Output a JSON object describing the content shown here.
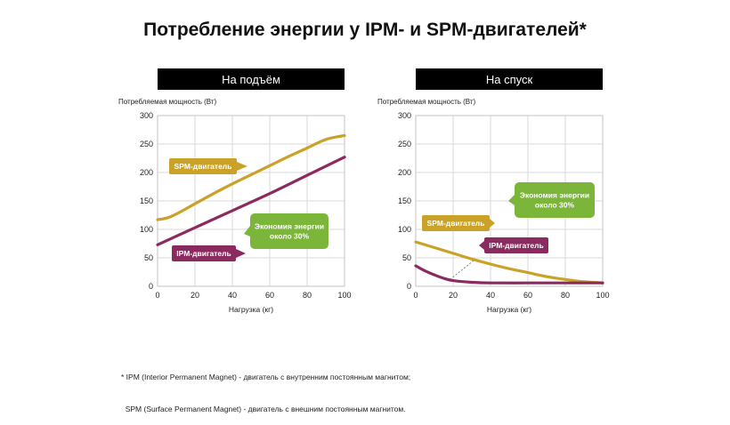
{
  "title": "Потребление энергии у IPM- и SPM-двигателей*",
  "footnote": [
    "* IPM (Interior Permanent Magnet) - двигатель с внутренним постоянным магнитом;",
    "  SPM (Surface Permanent Magnet) - двигатель с внешним постоянным магнитом."
  ],
  "colors": {
    "spm": "#c9a227",
    "ipm": "#8b2a5e",
    "savings": "#7bb53a",
    "grid": "#d9d9d9"
  },
  "chart_data": [
    {
      "type": "line",
      "panel_title": "На подъём",
      "ylabel": "Потребляемая мощность (Вт)",
      "xlabel": "Нагрузка (кг)",
      "xlim": [
        0,
        100
      ],
      "ylim": [
        0,
        300
      ],
      "xticks": [
        0,
        20,
        40,
        60,
        80,
        100
      ],
      "yticks": [
        0,
        50,
        100,
        150,
        200,
        250,
        300
      ],
      "grid": true,
      "series": [
        {
          "name": "SPM-двигатель",
          "color": "#c9a227",
          "x": [
            0,
            5,
            10,
            20,
            30,
            40,
            50,
            60,
            70,
            80,
            90,
            100
          ],
          "y": [
            117,
            120,
            127,
            145,
            163,
            180,
            196,
            212,
            228,
            243,
            258,
            265
          ]
        },
        {
          "name": "IPM-двигатель",
          "color": "#8b2a5e",
          "x": [
            0,
            20,
            40,
            60,
            80,
            100
          ],
          "y": [
            73,
            103,
            133,
            163,
            195,
            227
          ]
        }
      ],
      "annotation": "Экономия энергии около 30%"
    },
    {
      "type": "line",
      "panel_title": "На спуск",
      "ylabel": "Потребляемая мощность (Вт)",
      "xlabel": "Нагрузка (кг)",
      "xlim": [
        0,
        100
      ],
      "ylim": [
        0,
        300
      ],
      "xticks": [
        0,
        20,
        40,
        60,
        80,
        100
      ],
      "yticks": [
        0,
        50,
        100,
        150,
        200,
        250,
        300
      ],
      "grid": true,
      "series": [
        {
          "name": "SPM-двигатель",
          "color": "#c9a227",
          "x": [
            0,
            10,
            20,
            30,
            40,
            50,
            60,
            70,
            80,
            90,
            100
          ],
          "y": [
            78,
            68,
            58,
            48,
            39,
            31,
            24,
            17,
            12,
            8,
            6
          ]
        },
        {
          "name": "IPM-двигатель",
          "color": "#8b2a5e",
          "x": [
            0,
            5,
            10,
            15,
            20,
            30,
            40,
            60,
            80,
            100
          ],
          "y": [
            36,
            27,
            20,
            14,
            10,
            7,
            6,
            6,
            6,
            6
          ]
        }
      ],
      "annotation": "Экономия энергии около 30%"
    }
  ]
}
